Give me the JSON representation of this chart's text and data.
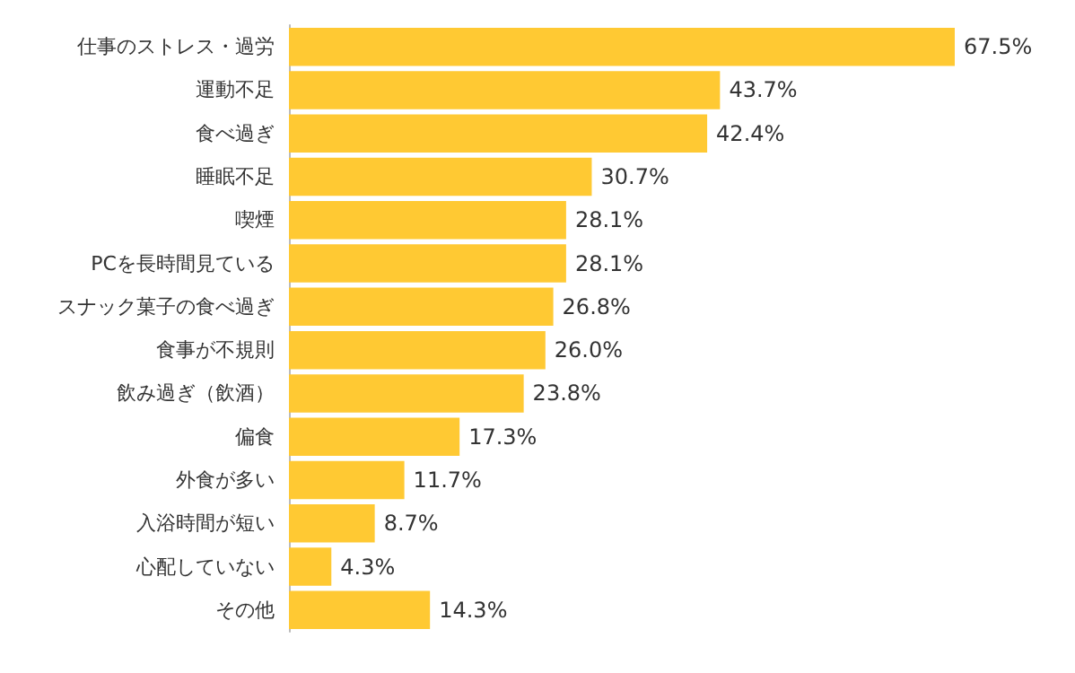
{
  "chart_data": {
    "type": "bar",
    "orientation": "horizontal",
    "categories": [
      "仕事のストレス・過労",
      "運動不足",
      "食べ過ぎ",
      "睡眠不足",
      "喫煙",
      "PCを長時間見ている",
      "スナック菓子の食べ過ぎ",
      "食事が不規則",
      "飲み過ぎ（飲酒）",
      "偏食",
      "外食が多い",
      "入浴時間が短い",
      "心配していない",
      "その他"
    ],
    "values": [
      67.5,
      43.7,
      42.4,
      30.7,
      28.1,
      28.1,
      26.8,
      26.0,
      23.8,
      17.3,
      11.7,
      8.7,
      4.3,
      14.3
    ],
    "value_labels": [
      "67.5%",
      "43.7%",
      "42.4%",
      "30.7%",
      "28.1%",
      "28.1%",
      "26.8%",
      "26.0%",
      "23.8%",
      "17.3%",
      "11.7%",
      "8.7%",
      "4.3%",
      "14.3%"
    ],
    "color": "#ffc933"
  }
}
